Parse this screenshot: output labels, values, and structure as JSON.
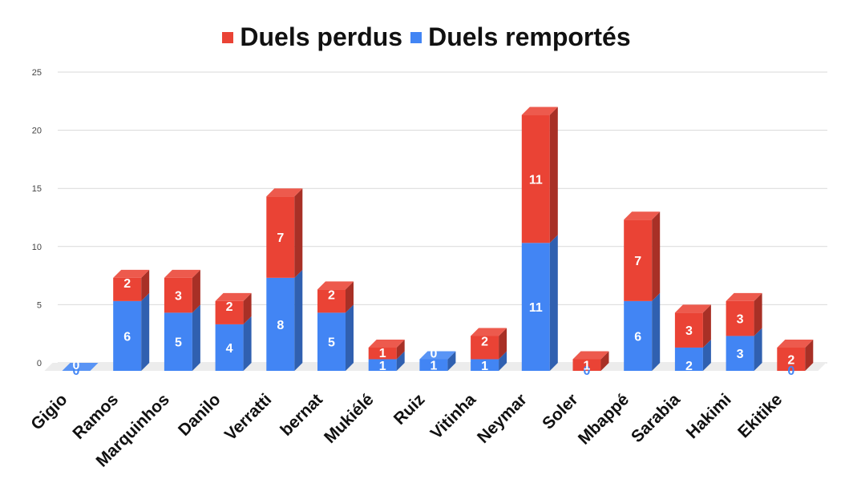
{
  "chart_data": {
    "type": "bar",
    "stacked": true,
    "style": "3d",
    "categories": [
      "Gigio",
      "Ramos",
      "Marquinhos",
      "Danilo",
      "Verratti",
      "bernat",
      "Mukiélé",
      "Ruiz",
      "Vitinha",
      "Neymar",
      "Soler",
      "Mbappé",
      "Sarabia",
      "Hakimi",
      "Ekitike"
    ],
    "series": [
      {
        "name": "Duels remportés",
        "color": "#4285f4",
        "values": [
          0,
          6,
          5,
          4,
          8,
          5,
          1,
          1,
          1,
          11,
          0,
          6,
          2,
          3,
          0
        ]
      },
      {
        "name": "Duels perdus",
        "color": "#ea4335",
        "values": [
          0,
          2,
          3,
          2,
          7,
          2,
          1,
          0,
          2,
          11,
          1,
          7,
          3,
          3,
          2
        ]
      }
    ],
    "legend_order": [
      "Duels perdus",
      "Duels remportés"
    ],
    "legend_position": "top",
    "yticks": [
      0,
      5,
      10,
      15,
      20,
      25
    ],
    "ylim": [
      0,
      25
    ],
    "grid": true,
    "data_labels": true
  }
}
